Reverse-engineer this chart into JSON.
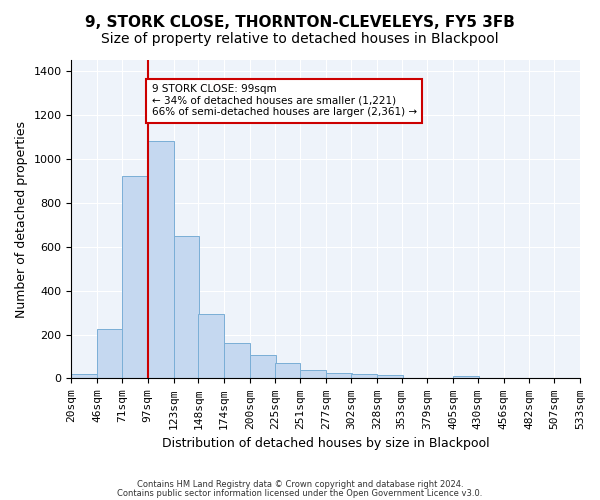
{
  "title": "9, STORK CLOSE, THORNTON-CLEVELEYS, FY5 3FB",
  "subtitle": "Size of property relative to detached houses in Blackpool",
  "xlabel": "Distribution of detached houses by size in Blackpool",
  "ylabel": "Number of detached properties",
  "bar_values": [
    20,
    225,
    920,
    1080,
    650,
    295,
    160,
    105,
    70,
    38,
    27,
    20,
    15,
    0,
    0,
    10,
    0,
    0,
    0
  ],
  "bin_lefts": [
    20,
    46,
    71,
    97,
    123,
    148,
    174,
    200,
    225,
    251,
    277,
    302,
    328,
    353,
    379,
    405,
    430,
    456,
    482
  ],
  "bin_width": 26,
  "x_tick_labels": [
    "20sqm",
    "46sqm",
    "71sqm",
    "97sqm",
    "123sqm",
    "148sqm",
    "174sqm",
    "200sqm",
    "225sqm",
    "251sqm",
    "277sqm",
    "302sqm",
    "328sqm",
    "353sqm",
    "379sqm",
    "405sqm",
    "430sqm",
    "456sqm",
    "482sqm",
    "507sqm",
    "533sqm"
  ],
  "x_tick_positions": [
    20,
    46,
    71,
    97,
    123,
    148,
    174,
    200,
    225,
    251,
    277,
    302,
    328,
    353,
    379,
    405,
    430,
    456,
    482,
    507,
    533
  ],
  "bar_color": "#c5d8f0",
  "bar_edge_color": "#7aaed6",
  "vline_x": 97,
  "vline_color": "#cc0000",
  "ylim": [
    0,
    1450
  ],
  "annotation_text": "9 STORK CLOSE: 99sqm\n← 34% of detached houses are smaller (1,221)\n66% of semi-detached houses are larger (2,361) →",
  "annotation_box_color": "#ffffff",
  "annotation_box_edge": "#cc0000",
  "footnote1": "Contains HM Land Registry data © Crown copyright and database right 2024.",
  "footnote2": "Contains public sector information licensed under the Open Government Licence v3.0.",
  "background_color": "#eef3fa",
  "title_fontsize": 11,
  "subtitle_fontsize": 10,
  "label_fontsize": 9,
  "tick_fontsize": 8,
  "yticks": [
    0,
    200,
    400,
    600,
    800,
    1000,
    1200,
    1400
  ]
}
